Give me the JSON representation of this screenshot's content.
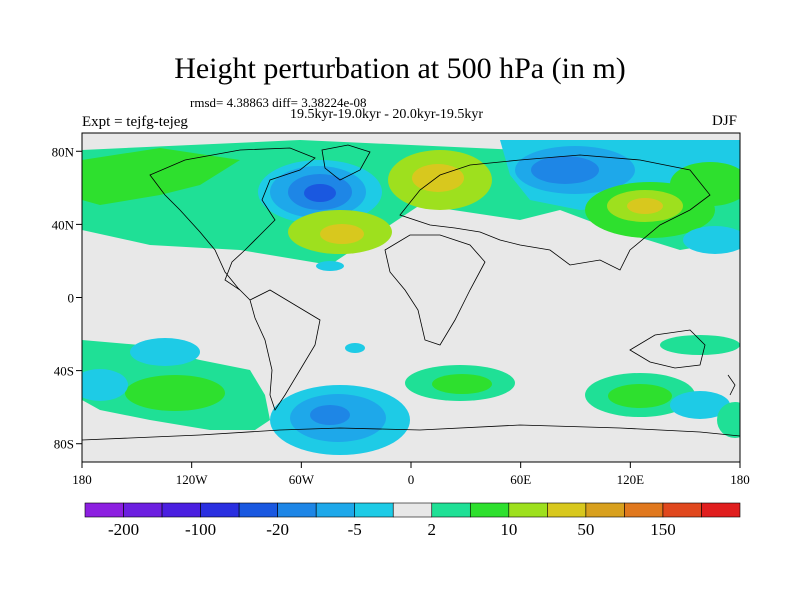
{
  "chart_data": {
    "type": "heatmap",
    "title": "Height perturbation at 500 hPa (in m)",
    "stats_text": "rmsd= 4.38863 diff= 3.38224e-08",
    "period_text": "19.5kyr-19.0kyr - 20.0kyr-19.5kyr",
    "experiment_text": "Expt = tejfg-tejeg",
    "season_text": "DJF",
    "x_range": [
      -180,
      180
    ],
    "y_range": [
      -90,
      90
    ],
    "x_ticks": [
      {
        "value": -180,
        "label": "180"
      },
      {
        "value": -120,
        "label": "120W"
      },
      {
        "value": -60,
        "label": "60W"
      },
      {
        "value": 0,
        "label": "0"
      },
      {
        "value": 60,
        "label": "60E"
      },
      {
        "value": 120,
        "label": "120E"
      },
      {
        "value": 180,
        "label": "180"
      }
    ],
    "y_ticks": [
      {
        "value": 80,
        "label": "80N"
      },
      {
        "value": 40,
        "label": "40N"
      },
      {
        "value": 0,
        "label": "0"
      },
      {
        "value": -40,
        "label": "40S"
      },
      {
        "value": -80,
        "label": "80S"
      }
    ],
    "colorbar": {
      "colors": [
        "#8c1fe0",
        "#6c1fe0",
        "#4a1fe0",
        "#2a2fe0",
        "#1a58e0",
        "#1e86e6",
        "#1ea8ea",
        "#1ecbe6",
        "#e8e8e8",
        "#1fe096",
        "#2ee02e",
        "#9ee01e",
        "#d8c81e",
        "#d8a01e",
        "#e0781e",
        "#e0481e",
        "#e01e1e"
      ],
      "labels": [
        {
          "boundary": 1,
          "text": "-200"
        },
        {
          "boundary": 3,
          "text": "-100"
        },
        {
          "boundary": 5,
          "text": "-20"
        },
        {
          "boundary": 7,
          "text": "-5"
        },
        {
          "boundary": 9,
          "text": "2"
        },
        {
          "boundary": 11,
          "text": "10"
        },
        {
          "boundary": 13,
          "text": "50"
        },
        {
          "boundary": 15,
          "text": "150"
        }
      ]
    },
    "anomaly_regions": [
      {
        "name": "north-pacific-positive",
        "lon": -160,
        "lat": 62,
        "rlon": 40,
        "rlat": 14,
        "level": "blue-green"
      },
      {
        "name": "north-america-negative",
        "lon": -45,
        "lat": 52,
        "rlon": 28,
        "rlat": 14,
        "level": "deep-blue"
      },
      {
        "name": "north-atlantic-positive",
        "lon": -40,
        "lat": 32,
        "rlon": 30,
        "rlat": 10,
        "level": "yellow"
      },
      {
        "name": "europe-positive",
        "lon": 20,
        "lat": 62,
        "rlon": 25,
        "rlat": 12,
        "level": "yellow"
      },
      {
        "name": "siberia-negative",
        "lon": 78,
        "lat": 65,
        "rlon": 40,
        "rlat": 14,
        "level": "deep-blue"
      },
      {
        "name": "east-asia-positive",
        "lon": 140,
        "lat": 42,
        "rlon": 35,
        "rlat": 13,
        "level": "yellow"
      },
      {
        "name": "south-pacific-negative",
        "lon": -50,
        "lat": -57,
        "rlon": 38,
        "rlat": 14,
        "level": "deep-blue"
      },
      {
        "name": "south-atlantic-positive",
        "lon": 30,
        "lat": -50,
        "rlon": 30,
        "rlat": 10,
        "level": "green"
      },
      {
        "name": "south-indian-positive",
        "lon": 110,
        "lat": -48,
        "rlon": 30,
        "rlat": 10,
        "level": "green"
      },
      {
        "name": "southeast-pacific-positive",
        "lon": -135,
        "lat": -55,
        "rlon": 30,
        "rlat": 10,
        "level": "green"
      }
    ]
  }
}
